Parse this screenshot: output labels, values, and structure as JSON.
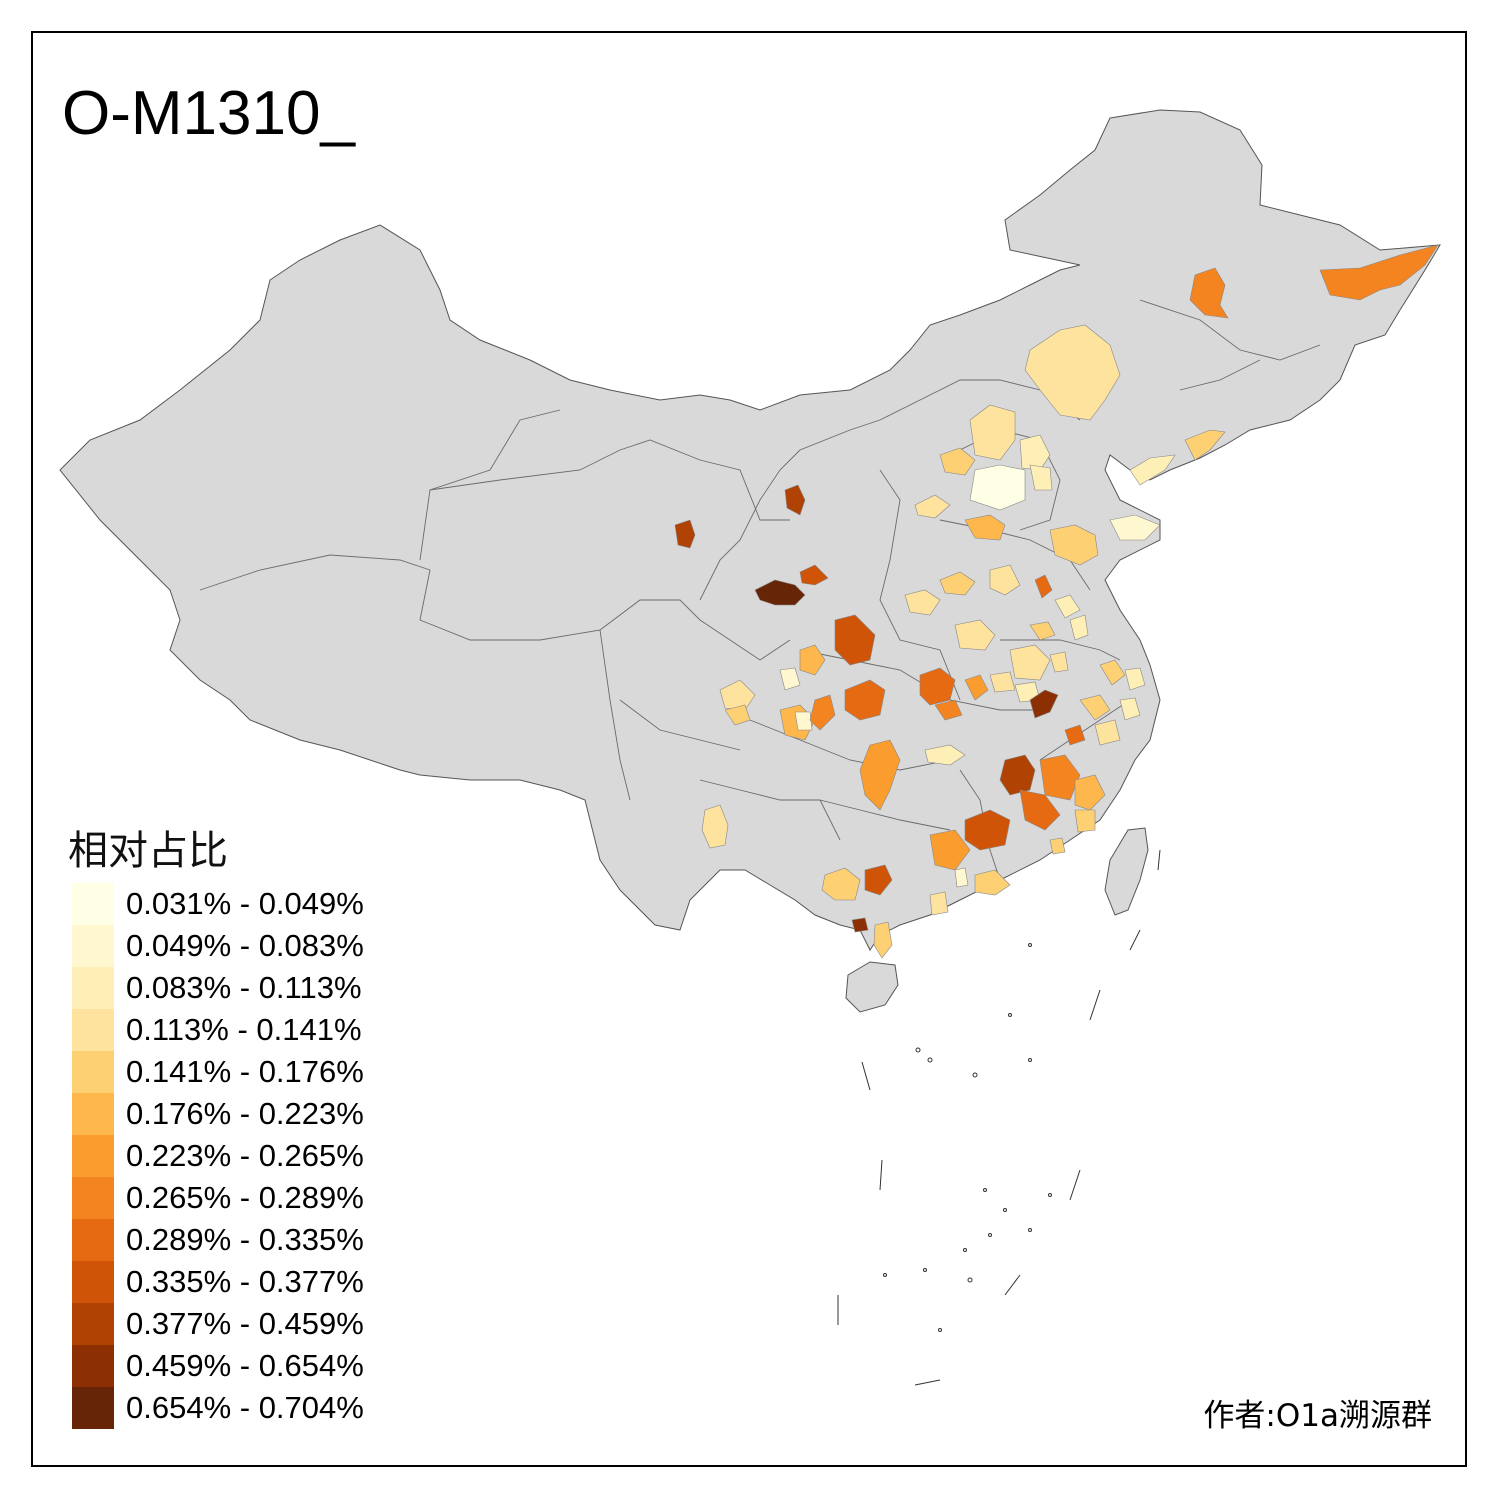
{
  "title": "O-M1310_",
  "legend": {
    "title": "相对占比",
    "classes": [
      {
        "label": "0.031% - 0.049%",
        "color": "#FFFFE5"
      },
      {
        "label": "0.049% - 0.083%",
        "color": "#FFF7CF"
      },
      {
        "label": "0.083% - 0.113%",
        "color": "#FEEFB7"
      },
      {
        "label": "0.113% - 0.141%",
        "color": "#FEE39F"
      },
      {
        "label": "0.141% - 0.176%",
        "color": "#FED074"
      },
      {
        "label": "0.176% - 0.223%",
        "color": "#FEB74D"
      },
      {
        "label": "0.223% - 0.265%",
        "color": "#FB9C2E"
      },
      {
        "label": "0.265% - 0.289%",
        "color": "#F4841F"
      },
      {
        "label": "0.289% - 0.335%",
        "color": "#E66A12"
      },
      {
        "label": "0.335% - 0.377%",
        "color": "#CF5407"
      },
      {
        "label": "0.377% - 0.459%",
        "color": "#B04204"
      },
      {
        "label": "0.459% - 0.654%",
        "color": "#8C3004"
      },
      {
        "label": "0.654% - 0.704%",
        "color": "#662506"
      }
    ]
  },
  "credit": "作者:O1a溯源群",
  "colors": {
    "land": "#D9D9D9",
    "border": "#5a5a5a",
    "frame": "#000000"
  }
}
